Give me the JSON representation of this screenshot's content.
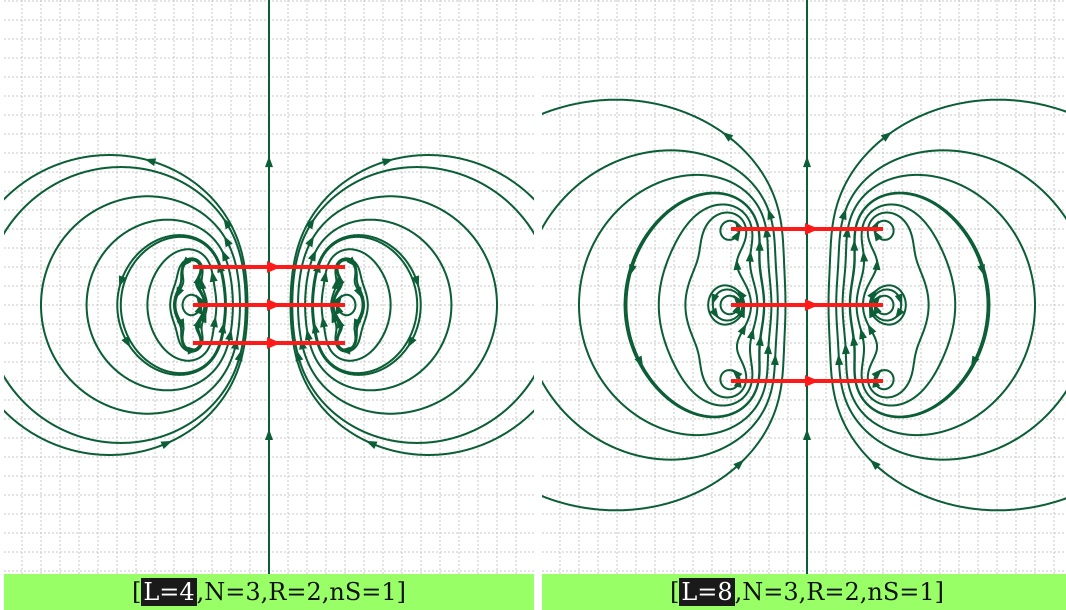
{
  "panels": [
    {
      "id": "left",
      "caption": {
        "prefix": "[",
        "highlight": "L=4",
        "suffix": ",N=3,R=2,nS=1]"
      },
      "params": {
        "L": 4,
        "N": 3,
        "R": 2,
        "nS": 1
      }
    },
    {
      "id": "right",
      "caption": {
        "prefix": "[",
        "highlight": "L=8",
        "suffix": ",N=3,R=2,nS=1]"
      },
      "params": {
        "L": 8,
        "N": 3,
        "R": 2,
        "nS": 1
      }
    }
  ],
  "colors": {
    "field_line": "#0b5e36",
    "coil": "#ff1a1a",
    "grid": "#c8c8c8",
    "caption_bg": "#99ff66",
    "highlight_bg": "#1a1a1a"
  }
}
